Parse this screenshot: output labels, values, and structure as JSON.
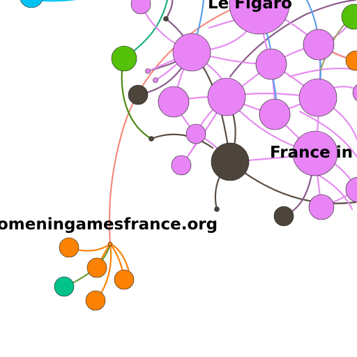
{
  "labels": {
    "le_figaro": "Le Figaro",
    "france_in": "France in",
    "womeningames": "omeningamesfrance.org"
  },
  "colors": {
    "pink": "#e884f5",
    "dark": "#4d443c",
    "orange": "#fb8205",
    "green": "#55c10a",
    "teal": "#00c28a",
    "cyan": "#00c5f4",
    "edge_pink": "#e58df0",
    "edge_salmon": "#f58a7d",
    "edge_blue": "#5aa0e8",
    "edge_green_dark": "#4c8a14",
    "edge_teal": "#1aaf7c"
  }
}
